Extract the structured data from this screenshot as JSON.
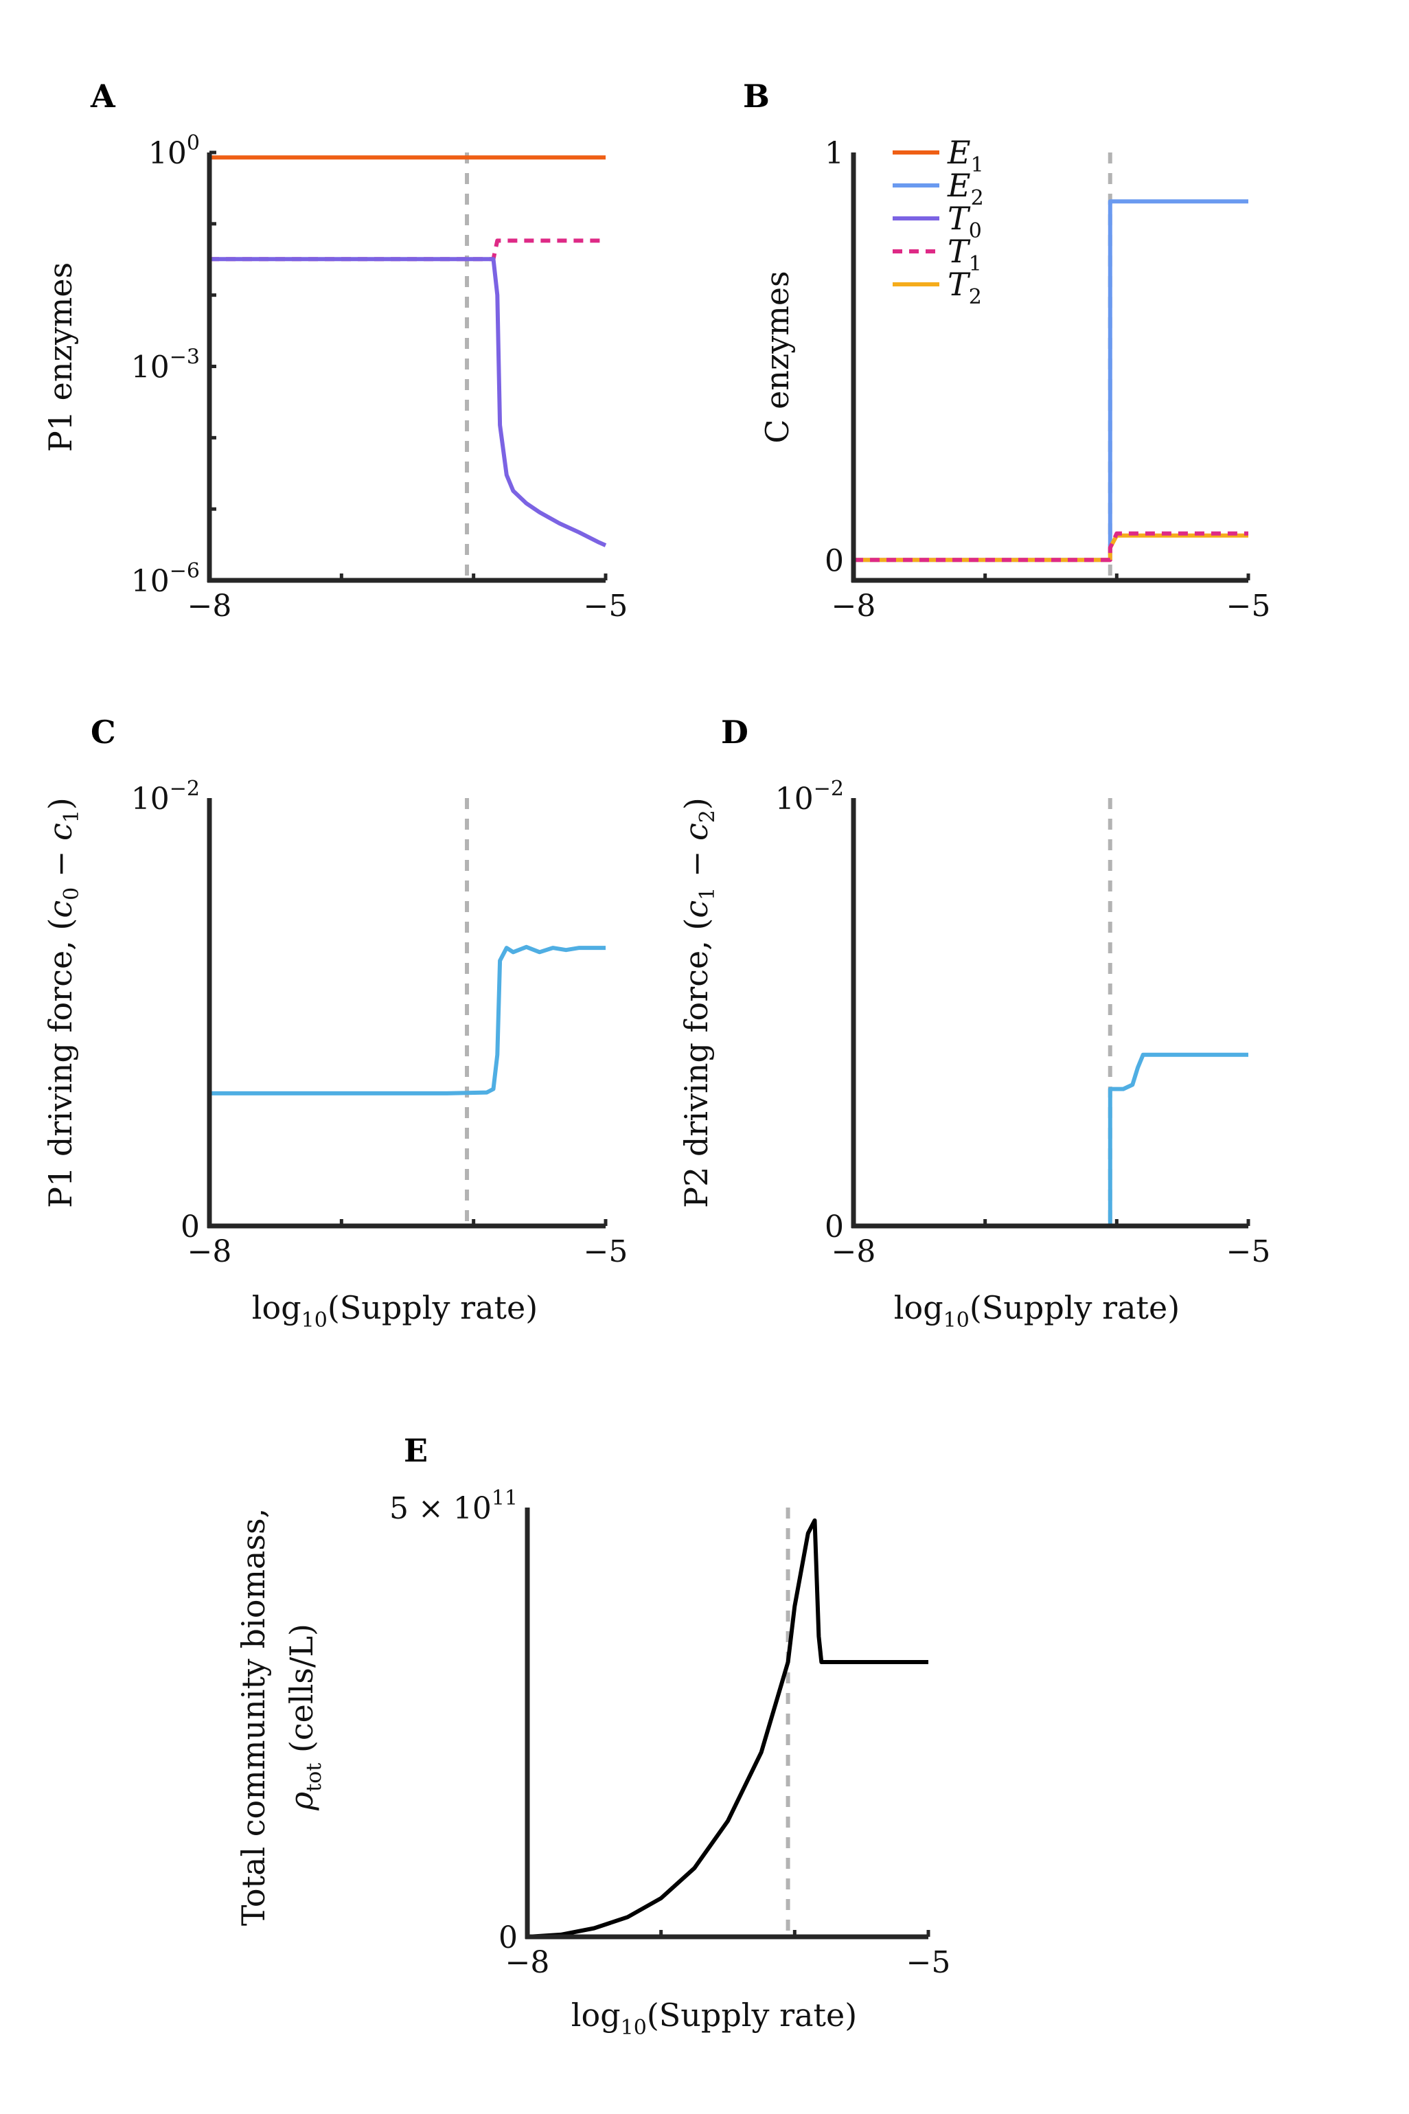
{
  "colors": {
    "E1": "#ef5f15",
    "E2": "#6a9af0",
    "T0": "#7b63e3",
    "T1": "#de2a86",
    "T2": "#f5ac1b",
    "driving": "#4faee3",
    "biomass": "#000000",
    "threshold": "#b3b3b3",
    "axis": "#262626"
  },
  "chart_data": [
    {
      "panel": "A",
      "type": "line",
      "ylabel": "P1 enzymes",
      "yscale": "log",
      "xlim": [
        -8,
        -5
      ],
      "ylim": [
        1e-06,
        1
      ],
      "xticks": [
        {
          "v": -8,
          "label": "−8"
        },
        {
          "v": -5,
          "label": "−5"
        }
      ],
      "yticks": [
        {
          "v": 0,
          "base": "10",
          "exp": "0"
        },
        {
          "v": -3,
          "base": "10",
          "exp": "−3"
        },
        {
          "v": -6,
          "base": "10",
          "exp": "−6"
        }
      ],
      "threshold_x": -6.05,
      "series": [
        {
          "key": "E1",
          "style": "solid",
          "x": [
            -8,
            -5
          ],
          "y": [
            0.85,
            0.85
          ]
        },
        {
          "key": "T1",
          "style": "dashed",
          "x": [
            -8,
            -5.85,
            -5.82,
            -5.5,
            -5
          ],
          "y": [
            0.032,
            0.032,
            0.058,
            0.058,
            0.058
          ]
        },
        {
          "key": "T0",
          "style": "solid",
          "x": [
            -8,
            -5.85,
            -5.82,
            -5.8,
            -5.75,
            -5.7,
            -5.6,
            -5.5,
            -5.35,
            -5.2,
            -5.05,
            -5
          ],
          "y": [
            0.032,
            0.032,
            0.01,
            0.00015,
            3e-05,
            1.8e-05,
            1.2e-05,
            9e-06,
            6.3e-06,
            4.7e-06,
            3.4e-06,
            3.1e-06
          ]
        }
      ]
    },
    {
      "panel": "B",
      "type": "line",
      "ylabel": "C enzymes",
      "xlim": [
        -8,
        -5
      ],
      "ylim": [
        -0.05,
        1
      ],
      "xticks": [
        {
          "v": -8,
          "label": "−8"
        },
        {
          "v": -5,
          "label": "−5"
        }
      ],
      "yticks": [
        {
          "v": 0,
          "label": "0"
        },
        {
          "v": 1,
          "label": "1"
        }
      ],
      "threshold_x": -6.05,
      "legend": {
        "placement": "top-left",
        "entries": [
          {
            "key": "E2",
            "sub": "2"
          }
        ]
      },
      "legend_entries": [
        {
          "key": "E1",
          "letter": "E",
          "sub": "1",
          "style": "solid"
        },
        {
          "key": "E2",
          "letter": "E",
          "sub": "2",
          "style": "solid"
        },
        {
          "key": "T0",
          "letter": "T",
          "sub": "0",
          "style": "solid"
        },
        {
          "key": "T1",
          "letter": "T",
          "sub": "1",
          "style": "dashed"
        },
        {
          "key": "T2",
          "letter": "T",
          "sub": "2",
          "style": "solid"
        }
      ],
      "series": [
        {
          "key": "E2",
          "style": "solid",
          "x": [
            -8,
            -6.05,
            -6.05,
            -5
          ],
          "y": [
            0,
            0,
            0.88,
            0.88
          ]
        },
        {
          "key": "T2",
          "style": "solid",
          "x": [
            -8,
            -6.05,
            -6.05,
            -6.0,
            -5
          ],
          "y": [
            0,
            0,
            0.03,
            0.06,
            0.06
          ]
        },
        {
          "key": "T1",
          "style": "dashed",
          "x": [
            -8,
            -6.05,
            -6.05,
            -6.0,
            -5
          ],
          "y": [
            0,
            0,
            0.03,
            0.065,
            0.065
          ]
        }
      ]
    },
    {
      "panel": "C",
      "type": "line",
      "ylabel_main": "P1 driving force, (",
      "xlabel": "Supply rate",
      "xlim": [
        -8,
        -5
      ],
      "ylim": [
        0,
        0.01
      ],
      "xticks": [
        {
          "v": -8,
          "label": "−8"
        },
        {
          "v": -5,
          "label": "−5"
        }
      ],
      "yticks": [
        {
          "v": 0,
          "label": "0"
        },
        {
          "v": 0.01,
          "base": "10",
          "exp": "−2"
        }
      ],
      "threshold_x": -6.05,
      "series": [
        {
          "key": "driving",
          "style": "solid",
          "x": [
            -8,
            -6.2,
            -5.9,
            -5.85,
            -5.82,
            -5.8,
            -5.75,
            -5.7,
            -5.6,
            -5.5,
            -5.4,
            -5.3,
            -5.2,
            -5
          ],
          "y": [
            0.0031,
            0.0031,
            0.00312,
            0.0032,
            0.004,
            0.0062,
            0.0065,
            0.0064,
            0.00652,
            0.0064,
            0.0065,
            0.00645,
            0.0065,
            0.0065
          ]
        }
      ]
    },
    {
      "panel": "D",
      "type": "line",
      "xlabel": "Supply rate",
      "xlim": [
        -8,
        -5
      ],
      "ylim": [
        0,
        0.01
      ],
      "xticks": [
        {
          "v": -8,
          "label": "−8"
        },
        {
          "v": -5,
          "label": "−5"
        }
      ],
      "yticks": [
        {
          "v": 0,
          "label": "0"
        },
        {
          "v": 0.01,
          "base": "10",
          "exp": "−2"
        }
      ],
      "threshold_x": -6.05,
      "series": [
        {
          "key": "driving",
          "style": "solid",
          "x": [
            -8,
            -6.05,
            -6.05,
            -5.95,
            -5.88,
            -5.84,
            -5.8,
            -5.75,
            -5.5,
            -5
          ],
          "y": [
            0,
            0,
            0.0032,
            0.0032,
            0.0033,
            0.0037,
            0.004,
            0.004,
            0.004,
            0.004
          ]
        }
      ]
    },
    {
      "panel": "E",
      "type": "line",
      "ylabel_line1": "Total community biomass,",
      "ylabel_line2_sub": "tot",
      "ylabel_line2_rest": "(cells/L)",
      "xlabel": "Supply rate",
      "xlim": [
        -8,
        -5
      ],
      "ylim": [
        0,
        500000000000.0
      ],
      "xticks": [
        {
          "v": -8,
          "label": "−8"
        },
        {
          "v": -5,
          "label": "−5"
        }
      ],
      "yticks": [
        {
          "v": 0,
          "label": "0"
        },
        {
          "v": 500000000000.0,
          "label": "5 × 10",
          "exp": "11"
        }
      ],
      "threshold_x": -6.05,
      "series": [
        {
          "key": "biomass",
          "style": "solid",
          "x": [
            -8,
            -7.75,
            -7.5,
            -7.25,
            -7.0,
            -6.75,
            -6.5,
            -6.25,
            -6.05,
            -6.0,
            -5.9,
            -5.85,
            -5.82,
            -5.8,
            -5.75,
            -5.6,
            -5.4,
            -5.2,
            -5.05,
            -5
          ],
          "y": [
            0,
            2500000000.0,
            10000000000.0,
            23000000000.0,
            45000000000.0,
            80000000000.0,
            135000000000.0,
            215000000000.0,
            320000000000.0,
            385000000000.0,
            470000000000.0,
            485000000000.0,
            350000000000.0,
            320000000000.0,
            320000000000.0,
            320000000000.0,
            320000000000.0,
            320000000000.0,
            320000000000.0,
            320000000000.0
          ]
        }
      ]
    }
  ],
  "text": {
    "A": "A",
    "B": "B",
    "C": "C",
    "D": "D",
    "E": "E",
    "xlabel_log": "log",
    "xlabel_base": "10",
    "xlabel_rest": "(Supply rate)",
    "ylabel_A": "P1 enzymes",
    "ylabel_B": "C enzymes",
    "ylabel_C_start": "P1 driving force, (",
    "ylabel_D_start": "P2 driving force, (",
    "c": "c",
    "c0sub": "0",
    "c1sub": "1",
    "c2sub": "2",
    "minus": " − ",
    "close_paren": ")",
    "ylabel_E_line1": "Total community biomass,",
    "rho": "ρ",
    "rho_sub": "tot",
    "ylabel_E_rest": " (cells/L)"
  }
}
